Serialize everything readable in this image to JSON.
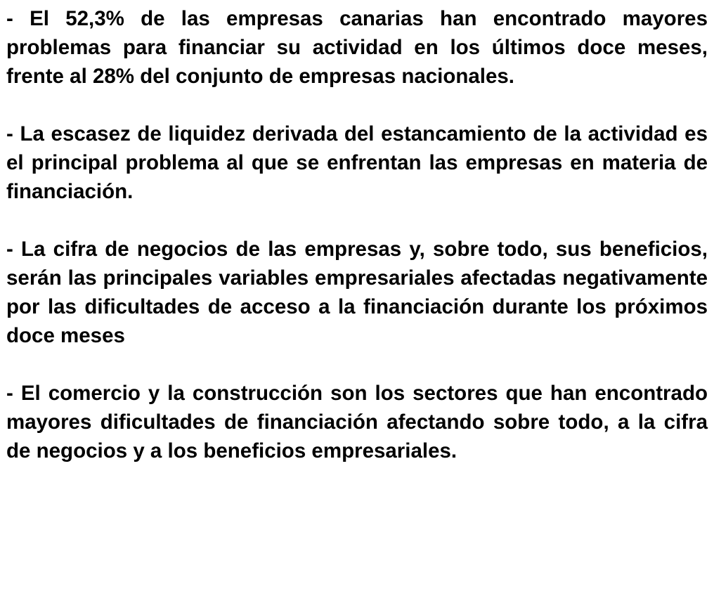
{
  "paragraphs": [
    "- El 52,3% de las empresas canarias han encontrado mayores problemas para financiar su actividad en los últimos doce meses, frente al 28% del conjunto de empresas nacionales.",
    "- La escasez de liquidez derivada del estancamiento de la actividad es el principal problema al que se enfrentan las empresas en materia de financiación.",
    "- La cifra de negocios de las empresas y, sobre todo, sus beneficios, serán las principales variables empresariales afectadas negativamente por las dificultades de acceso a la financiación durante los próximos doce meses",
    "- El comercio y la construcción son los sectores que han encontrado mayores dificultades de financiación afectando sobre todo, a la cifra de negocios y a los beneficios empresariales."
  ]
}
